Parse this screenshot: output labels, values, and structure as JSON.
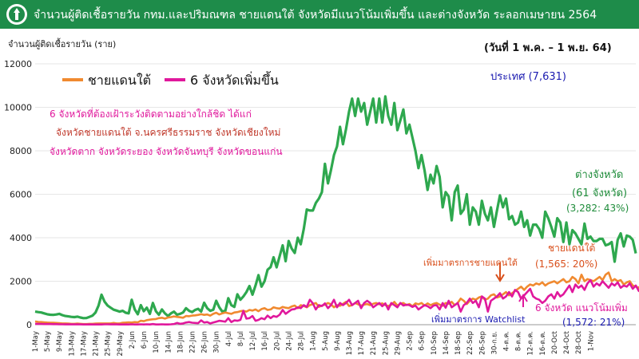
{
  "header": {
    "title": "จำนวนผู้ติดเชื้อรายวัน กทม.และปริมณฑล ชายแดนใต้ จังหวัดมีแนวโน้มเพิ่มขึ้น และต่างจังหวัด ระลอกเมษายน 2564"
  },
  "colors": {
    "header_bg": "#1e8c4a",
    "others": "#2ea84e",
    "south": "#f08a30",
    "watch": "#e0189c"
  },
  "annotations": {
    "national": "ประเทศ (7,631)",
    "date_range": "(วันที่ 1 พ.ค. – 1 พ.ย. 64)",
    "watch_title": "6 จังหวัดที่ต้องเฝ้าระวังติดตามอย่างใกล้ชิด  ได้แก่",
    "watch_line2": "จังหวัดชายแดนใต้ จ.นครศรีธรรมราช จังหวัดเชียงใหม่",
    "watch_line3": "จังหวัดตาก จังหวัดระยอง จังหวัดจันทบุรี จังหวัดขอนแก่น",
    "others_line1": "ต่างจังหวัด",
    "others_line2": "(61 จังหวัด)",
    "others_line3": "(3,282: 43%)",
    "south_line1": "ชายแดนใต้",
    "south_line2": "(1,565: 20%)",
    "measure_south": "เพิ่มมาตรการชายแดนใต้",
    "measure_watch": "เพิ่มมาตรการ Watchlist",
    "six_line1": "6 จังหวัด แนวโน้มเพิ่ม",
    "six_line2": "(1,572: 21%)"
  },
  "chart_data": {
    "type": "line",
    "title": "",
    "ylabel": "จำนวนผู้ติดเชื้อรายวัน (ราย)",
    "xlabel": "",
    "ylim": [
      0,
      12000
    ],
    "yticks": [
      0,
      2000,
      4000,
      6000,
      8000,
      10000,
      12000
    ],
    "x_tick_labels": [
      "1-May",
      "5-May",
      "9-May",
      "13-May",
      "17-May",
      "21-May",
      "25-May",
      "29-May",
      "2-Jun",
      "6-Jun",
      "10-Jun",
      "14-Jun",
      "18-Jun",
      "22-Jun",
      "26-Jun",
      "30-Jun",
      "4-Jul",
      "8-Jul",
      "12-Jul",
      "16-Jul",
      "20-Jul",
      "24-Jul",
      "28-Jul",
      "1-Aug",
      "5-Aug",
      "9-Aug",
      "13-Aug",
      "17-Aug",
      "21-Aug",
      "25-Aug",
      "29-Aug",
      "2-Sep",
      "6-Sep",
      "10-Sep",
      "14-Sep",
      "18-Sep",
      "22-Sep",
      "26-Sep",
      "30-ก.ย.",
      "4-ต.ค.",
      "8-ต.ค.",
      "12-ต.ค.",
      "16-ต.ค.",
      "20-Oct",
      "24-Oct",
      "28-Oct",
      "1-Nov"
    ],
    "legend": [
      {
        "name": "ชายแดนใต้",
        "color": "#f08a30"
      },
      {
        "name": "6 จังหวัดเพิ่มขึ้น",
        "color": "#e0189c"
      }
    ],
    "series": [
      {
        "name": "ต่างจังหวัด",
        "color": "#2ea84e",
        "stroke_width": 3.2,
        "values": [
          600,
          580,
          560,
          520,
          480,
          460,
          450,
          470,
          500,
          440,
          400,
          380,
          360,
          350,
          370,
          330,
          300,
          310,
          360,
          420,
          560,
          880,
          1380,
          1060,
          880,
          780,
          690,
          650,
          600,
          640,
          550,
          520,
          1150,
          700,
          480,
          900,
          620,
          780,
          500,
          1000,
          620,
          460,
          700,
          520,
          400,
          520,
          600,
          460,
          500,
          560,
          760,
          640,
          580,
          680,
          730,
          600,
          1010,
          760,
          640,
          690,
          1100,
          800,
          600,
          640,
          1220,
          900,
          820,
          1400,
          1150,
          1300,
          1500,
          1780,
          1380,
          1800,
          2280,
          1750,
          2000,
          2530,
          2650,
          3100,
          2640,
          3150,
          3650,
          2920,
          3850,
          3500,
          3300,
          4000,
          3700,
          4400,
          5300,
          5250,
          5250,
          5600,
          5800,
          6100,
          7400,
          6500,
          7100,
          7800,
          8200,
          9100,
          8300,
          9000,
          9800,
          10400,
          9600,
          10400,
          9800,
          10200,
          9200,
          9800,
          10400,
          9300,
          10400,
          9300,
          10500,
          9600,
          9200,
          10200,
          8950,
          9400,
          9900,
          8800,
          9200,
          8600,
          8000,
          7200,
          7800,
          7100,
          6200,
          6900,
          6500,
          7300,
          6800,
          5400,
          6100,
          5900,
          4800,
          6100,
          6400,
          5100,
          5300,
          6000,
          4600,
          5400,
          5200,
          4600,
          5700,
          5100,
          4800,
          5400,
          4500,
          5250,
          5950,
          5400,
          5800,
          4850,
          5000,
          4600,
          4700,
          5200,
          4500,
          4800,
          4100,
          4600,
          4600,
          4400,
          4000,
          5200,
          4900,
          4500,
          4050,
          4900,
          4700,
          3800,
          4700,
          3700,
          4350,
          4200,
          3950,
          3700,
          4650,
          3950,
          4050,
          3850,
          3850,
          3950,
          3950,
          3650,
          3700,
          3800,
          2900,
          3900,
          4200,
          3600,
          4100,
          4050,
          3900,
          3282
        ]
      },
      {
        "name": "ชายแดนใต้",
        "color": "#f08a30",
        "stroke_width": 2.6,
        "values": [
          150,
          130,
          120,
          110,
          100,
          90,
          90,
          80,
          70,
          60,
          60,
          50,
          40,
          40,
          50,
          40,
          30,
          30,
          40,
          40,
          50,
          60,
          60,
          60,
          60,
          60,
          80,
          60,
          60,
          90,
          100,
          110,
          100,
          120,
          110,
          180,
          160,
          210,
          230,
          250,
          260,
          300,
          320,
          280,
          330,
          350,
          380,
          360,
          340,
          320,
          400,
          390,
          420,
          430,
          450,
          480,
          450,
          470,
          420,
          500,
          550,
          470,
          520,
          560,
          530,
          500,
          560,
          580,
          620,
          640,
          600,
          680,
          650,
          700,
          620,
          720,
          760,
          680,
          700,
          800,
          760,
          740,
          820,
          780,
          760,
          840,
          880,
          760,
          900,
          860,
          800,
          900,
          950,
          1000,
          820,
          880,
          920,
          1000,
          940,
          800,
          900,
          870,
          960,
          1050,
          860,
          900,
          1000,
          940,
          880,
          920,
          950,
          900,
          960,
          1000,
          940,
          980,
          900,
          860,
          920,
          1050,
          880,
          960,
          1000,
          900,
          950,
          850,
          980,
          940,
          1000,
          880,
          980,
          900,
          960,
          1000,
          920,
          870,
          1000,
          960,
          1050,
          900,
          1000,
          1200,
          1100,
          950,
          1100,
          1200,
          1150,
          1250,
          1300,
          1150,
          1200,
          1350,
          1400,
          1250,
          1300,
          1400,
          1500,
          1350,
          1450,
          1550,
          1650,
          1750,
          1600,
          1750,
          1850,
          1800,
          1900,
          1850,
          1950,
          1800,
          1900,
          1950,
          2000,
          1900,
          2000,
          2100,
          1950,
          2000,
          2200,
          2100,
          1900,
          2300,
          2000,
          2100,
          2050,
          2000,
          2100,
          2200,
          2050,
          2300,
          2400,
          2000,
          2100,
          2000,
          2050,
          1850,
          1950,
          2000,
          1800,
          1750,
          1700,
          1900,
          1800,
          1700,
          1600,
          1750,
          1565
        ]
      },
      {
        "name": "6 จังหวัดเพิ่มขึ้น",
        "color": "#e0189c",
        "stroke_width": 2.6,
        "values": [
          40,
          40,
          35,
          30,
          30,
          30,
          25,
          25,
          20,
          20,
          15,
          15,
          20,
          15,
          15,
          15,
          10,
          10,
          15,
          10,
          10,
          10,
          10,
          20,
          20,
          15,
          15,
          15,
          10,
          10,
          10,
          10,
          20,
          10,
          10,
          20,
          10,
          20,
          10,
          30,
          10,
          10,
          20,
          10,
          10,
          20,
          30,
          80,
          40,
          60,
          100,
          120,
          90,
          80,
          70,
          200,
          100,
          120,
          60,
          100,
          140,
          180,
          160,
          140,
          300,
          120,
          200,
          180,
          220,
          640,
          280,
          300,
          400,
          180,
          220,
          300,
          250,
          420,
          300,
          400,
          360,
          460,
          680,
          500,
          600,
          700,
          720,
          800,
          760,
          900,
          820,
          1150,
          980,
          700,
          900,
          860,
          980,
          760,
          900,
          1150,
          800,
          1000,
          900,
          1000,
          1150,
          900,
          1000,
          1100,
          760,
          1000,
          1100,
          1000,
          800,
          900,
          1000,
          850,
          980,
          700,
          1000,
          900,
          800,
          1000,
          880,
          920,
          900,
          820,
          880,
          700,
          800,
          900,
          850,
          760,
          880,
          900,
          700,
          1000,
          780,
          1100,
          800,
          900,
          1000,
          600,
          900,
          1000,
          1200,
          1000,
          1100,
          800,
          1300,
          1200,
          600,
          1100,
          1200,
          1300,
          1450,
          1200,
          1300,
          1500,
          1300,
          1600,
          1500,
          1200,
          1350,
          1500,
          1650,
          1300,
          1200,
          1150,
          1000,
          1100,
          1300,
          1400,
          1200,
          1500,
          1300,
          1400,
          1600,
          1800,
          1500,
          1850,
          1700,
          1800,
          1600,
          1900,
          2050,
          1750,
          1900,
          1800,
          2000,
          1850,
          1700,
          1900,
          1800,
          1950,
          1700,
          1800,
          1750,
          1900,
          1650,
          1800,
          1550,
          1700,
          1800,
          1572
        ]
      }
    ]
  }
}
